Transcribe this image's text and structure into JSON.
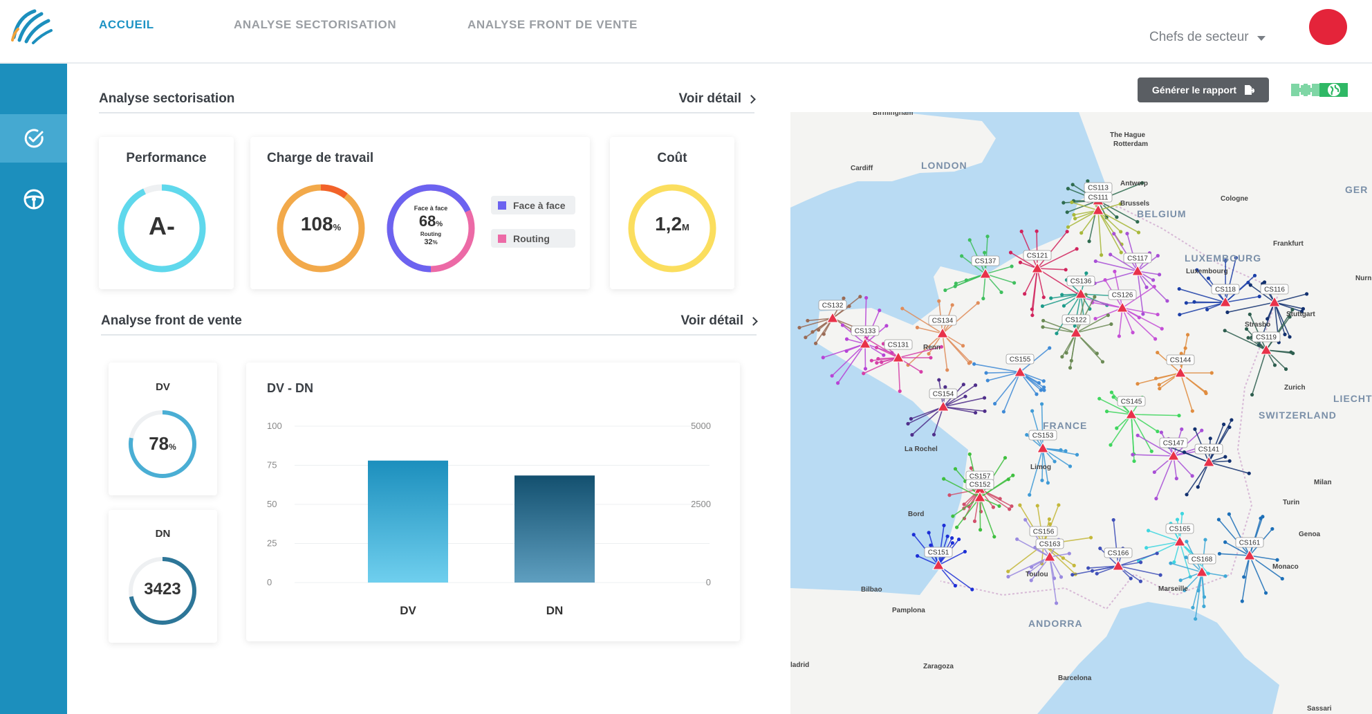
{
  "nav": {
    "tabs": [
      {
        "label": "ACCUEIL",
        "active": true
      },
      {
        "label": "ANALYSE SECTORISATION",
        "active": false
      },
      {
        "label": "ANALYSE FRONT DE VENTE",
        "active": false
      }
    ],
    "user_select": "Chefs de secteur",
    "accent_color": "#1d93c4"
  },
  "sidebar": {
    "items": [
      {
        "icon": "check-circle-icon",
        "active": true
      },
      {
        "icon": "steering-wheel-icon",
        "active": false
      }
    ],
    "color": "#1c8fbd"
  },
  "sectorisation": {
    "title": "Analyse sectorisation",
    "link": "Voir détail",
    "performance": {
      "title": "Performance",
      "grade": "A-",
      "fill": 0.93
    },
    "charge": {
      "title": "Charge de travail",
      "value": "108",
      "unit": "%",
      "fill": 1.0,
      "ring2_label": "Face à face",
      "ring2_value": "68",
      "ring2_unit": "%",
      "ring2_sub_label": "Routing",
      "ring2_sub_value": "32",
      "ring2_sub_unit": "%",
      "face_fraction": 0.68,
      "legend": [
        {
          "label": "Face à face",
          "color": "#6c63f0"
        },
        {
          "label": "Routing",
          "color": "#ec6aa6"
        }
      ]
    },
    "cout": {
      "title": "Coût",
      "value": "1,2",
      "unit": "M",
      "fill": 1.0
    }
  },
  "front_vente": {
    "title": "Analyse front de vente",
    "link": "Voir détail",
    "dv": {
      "title": "DV",
      "value": "78",
      "unit": "%",
      "fill": 0.78
    },
    "dn": {
      "title": "DN",
      "value": "3423",
      "fill": 0.72
    }
  },
  "chart_data": {
    "type": "bar",
    "title": "DV - DN",
    "categories": [
      "DV",
      "DN"
    ],
    "series": [
      {
        "values": [
          78,
          null
        ],
        "axis": "left",
        "color_top": "#1c8fbd",
        "color_bottom": "#6fcfee"
      },
      {
        "values": [
          null,
          3423
        ],
        "axis": "right",
        "color_top": "#13506f",
        "color_bottom": "#5f9fc0"
      }
    ],
    "left_axis": {
      "ticks": [
        0,
        25,
        50,
        75,
        100
      ],
      "ylim": [
        0,
        100
      ]
    },
    "right_axis": {
      "ticks": [
        0,
        2500,
        5000
      ],
      "ylim": [
        0,
        5000
      ]
    },
    "grid": true
  },
  "map": {
    "report_button": "Générer le rapport",
    "labels": {
      "birmingham": "Birmingham",
      "the_hague": "The Hague",
      "rotterdam": "Rotterdam",
      "cardiff": "Cardiff",
      "london": "LONDON",
      "antwerp": "Antwerp",
      "brussels": "Brussels",
      "belgium": "BELGIUM",
      "cologne": "Cologne",
      "ger": "GER",
      "frankfurt": "Frankfurt",
      "luxembourg_country": "LUXEMBOURG",
      "luxembourg_city": "Luxembourg",
      "nurn": "Nurn",
      "stuttgart": "Stuttgart",
      "strasbourg": "Strasbo",
      "zurich": "Zurich",
      "liechtenstein": "LIECHTENST",
      "switzerland": "SWITZERLAND",
      "france": "FRANCE",
      "rennes": "Renn",
      "limoges": "Limog",
      "la_rochelle": "La Rochel",
      "bordeaux": "Bord",
      "milan": "Milan",
      "turin": "Turin",
      "genoa": "Genoa",
      "monaco": "Monaco",
      "marseille": "Marseille",
      "toulouse": "Toulou",
      "andorra": "ANDORRA",
      "bilbao": "Bilbao",
      "pamplona": "Pamplona",
      "zaragoza": "Zaragoza",
      "barcelona": "Barcelona",
      "madrid": "ladrid",
      "sassari": "Sassari"
    },
    "sectors": [
      {
        "id": "CS113",
        "x": 1588,
        "y": 290,
        "color": "#2e6b4f"
      },
      {
        "id": "CS111",
        "x": 1588,
        "y": 304,
        "color": "#a8b83a"
      },
      {
        "id": "CS137",
        "x": 1425,
        "y": 396,
        "color": "#3fbf5e"
      },
      {
        "id": "CS121",
        "x": 1500,
        "y": 388,
        "color": "#d1245d"
      },
      {
        "id": "CS117",
        "x": 1645,
        "y": 392,
        "color": "#a84fd6"
      },
      {
        "id": "CS136",
        "x": 1563,
        "y": 425,
        "color": "#1d9b8a"
      },
      {
        "id": "CS126",
        "x": 1623,
        "y": 445,
        "color": "#c44fd6"
      },
      {
        "id": "CS118",
        "x": 1772,
        "y": 437,
        "color": "#1c3fa8"
      },
      {
        "id": "CS116",
        "x": 1843,
        "y": 437,
        "color": "#12306f"
      },
      {
        "id": "CS132",
        "x": 1204,
        "y": 460,
        "color": "#9a6b55"
      },
      {
        "id": "CS134",
        "x": 1363,
        "y": 482,
        "color": "#e08c5a"
      },
      {
        "id": "CS122",
        "x": 1556,
        "y": 481,
        "color": "#6b8a55"
      },
      {
        "id": "CS133",
        "x": 1251,
        "y": 497,
        "color": "#b744d6"
      },
      {
        "id": "CS131",
        "x": 1299,
        "y": 517,
        "color": "#d63fa8"
      },
      {
        "id": "CS119",
        "x": 1831,
        "y": 506,
        "color": "#2e5e4f"
      },
      {
        "id": "CS155",
        "x": 1475,
        "y": 538,
        "color": "#3f8ad6"
      },
      {
        "id": "CS144",
        "x": 1707,
        "y": 539,
        "color": "#e08c3f"
      },
      {
        "id": "CS154",
        "x": 1364,
        "y": 588,
        "color": "#4f2e8a"
      },
      {
        "id": "CS145",
        "x": 1636,
        "y": 599,
        "color": "#3fd65e"
      },
      {
        "id": "CS153",
        "x": 1508,
        "y": 648,
        "color": "#3f9ad6"
      },
      {
        "id": "CS147",
        "x": 1697,
        "y": 659,
        "color": "#a84fd6"
      },
      {
        "id": "CS141",
        "x": 1748,
        "y": 668,
        "color": "#12306f"
      },
      {
        "id": "CS157",
        "x": 1417,
        "y": 707,
        "color": "#d14f6b"
      },
      {
        "id": "CS152",
        "x": 1417,
        "y": 719,
        "color": "#3fbf3f"
      },
      {
        "id": "CS156",
        "x": 1509,
        "y": 787,
        "color": "#c4b83a"
      },
      {
        "id": "CS165",
        "x": 1706,
        "y": 783,
        "color": "#3fd6e0"
      },
      {
        "id": "CS163",
        "x": 1518,
        "y": 805,
        "color": "#9a8ae0"
      },
      {
        "id": "CS161",
        "x": 1807,
        "y": 803,
        "color": "#1c6fb8"
      },
      {
        "id": "CS151",
        "x": 1357,
        "y": 817,
        "color": "#1c2fd6"
      },
      {
        "id": "CS166",
        "x": 1617,
        "y": 818,
        "color": "#3f4fb8"
      },
      {
        "id": "CS168",
        "x": 1738,
        "y": 827,
        "color": "#3fa8d6"
      }
    ]
  }
}
